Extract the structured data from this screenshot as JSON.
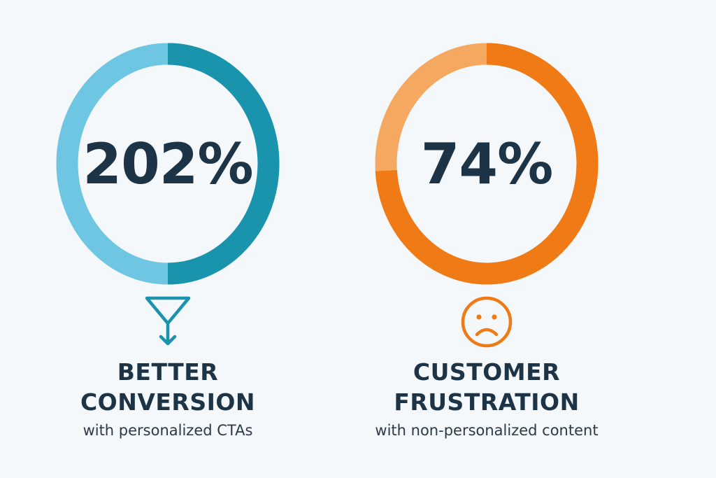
{
  "stats": [
    {
      "value": "202%",
      "headline_line1": "BETTER",
      "headline_line2": "CONVERSION",
      "subtitle": "with personalized CTAs",
      "icon": "funnel-arrow-icon",
      "ring_fill_fraction": 0.5,
      "color_light": "#6ec6e2",
      "color_dark": "#1a93ad"
    },
    {
      "value": "74%",
      "headline_line1": "CUSTOMER",
      "headline_line2": "FRUSTRATION",
      "subtitle": "with non-personalized content",
      "icon": "sad-face-icon",
      "ring_fill_fraction": 0.74,
      "color_light": "#f5a860",
      "color_dark": "#ef7a16"
    }
  ]
}
